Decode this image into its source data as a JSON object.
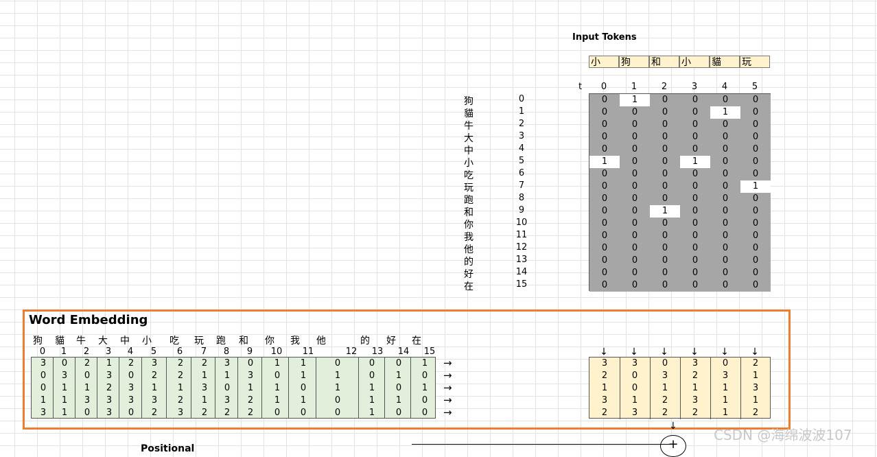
{
  "input_tokens": {
    "title": "Input Tokens",
    "tokens": [
      "小",
      "狗",
      "和",
      "小",
      "貓",
      "玩"
    ],
    "t_label": "t",
    "positions": [
      "0",
      "1",
      "2",
      "3",
      "4",
      "5"
    ]
  },
  "vocabulary": {
    "words": [
      "狗",
      "貓",
      "牛",
      "大",
      "中",
      "小",
      "吃",
      "玩",
      "跑",
      "和",
      "你",
      "我",
      "他",
      "的",
      "好",
      "在"
    ],
    "indices": [
      "0",
      "1",
      "2",
      "3",
      "4",
      "5",
      "6",
      "7",
      "8",
      "9",
      "10",
      "11",
      "12",
      "13",
      "14",
      "15"
    ]
  },
  "onehot": [
    [
      0,
      1,
      0,
      0,
      0,
      0
    ],
    [
      0,
      0,
      0,
      0,
      1,
      0
    ],
    [
      0,
      0,
      0,
      0,
      0,
      0
    ],
    [
      0,
      0,
      0,
      0,
      0,
      0
    ],
    [
      0,
      0,
      0,
      0,
      0,
      0
    ],
    [
      1,
      0,
      0,
      1,
      0,
      0
    ],
    [
      0,
      0,
      0,
      0,
      0,
      0
    ],
    [
      0,
      0,
      0,
      0,
      0,
      1
    ],
    [
      0,
      0,
      0,
      0,
      0,
      0
    ],
    [
      0,
      0,
      1,
      0,
      0,
      0
    ],
    [
      0,
      0,
      0,
      0,
      0,
      0
    ],
    [
      0,
      0,
      0,
      0,
      0,
      0
    ],
    [
      0,
      0,
      0,
      0,
      0,
      0
    ],
    [
      0,
      0,
      0,
      0,
      0,
      0
    ],
    [
      0,
      0,
      0,
      0,
      0,
      0
    ],
    [
      0,
      0,
      0,
      0,
      0,
      0
    ]
  ],
  "word_embedding": {
    "title": "Word Embedding",
    "words": [
      "狗",
      "貓",
      "牛",
      "大",
      "中",
      "小",
      "吃",
      "玩",
      "跑",
      "和",
      "你",
      "我",
      "他",
      "的",
      "好",
      "在"
    ],
    "indices": [
      "0",
      "1",
      "2",
      "3",
      "4",
      "5",
      "6",
      "7",
      "8",
      "9",
      "10",
      "11",
      "12",
      "13",
      "14",
      "15"
    ],
    "matrix": [
      [
        3,
        0,
        2,
        1,
        2,
        3,
        2,
        2,
        3,
        0,
        1,
        1,
        0,
        0,
        0,
        1
      ],
      [
        0,
        3,
        0,
        3,
        0,
        2,
        2,
        1,
        1,
        3,
        0,
        1,
        1,
        0,
        1,
        0
      ],
      [
        0,
        1,
        1,
        2,
        3,
        1,
        1,
        3,
        0,
        1,
        1,
        0,
        1,
        1,
        0,
        1
      ],
      [
        1,
        1,
        3,
        3,
        3,
        3,
        2,
        1,
        3,
        2,
        1,
        1,
        0,
        1,
        1,
        0
      ],
      [
        3,
        1,
        0,
        3,
        0,
        2,
        3,
        2,
        2,
        2,
        0,
        0,
        0,
        1,
        0,
        0
      ]
    ],
    "arrow": "→",
    "down_arrow": "↓"
  },
  "output_embedding": [
    [
      3,
      3,
      0,
      3,
      0,
      2
    ],
    [
      2,
      0,
      3,
      2,
      3,
      1
    ],
    [
      1,
      0,
      1,
      1,
      1,
      3
    ],
    [
      3,
      1,
      2,
      3,
      1,
      1
    ],
    [
      2,
      3,
      2,
      2,
      1,
      2
    ]
  ],
  "bottom": {
    "label": "Positional",
    "plus": "+"
  },
  "watermark": "CSDN @海绵波波107"
}
